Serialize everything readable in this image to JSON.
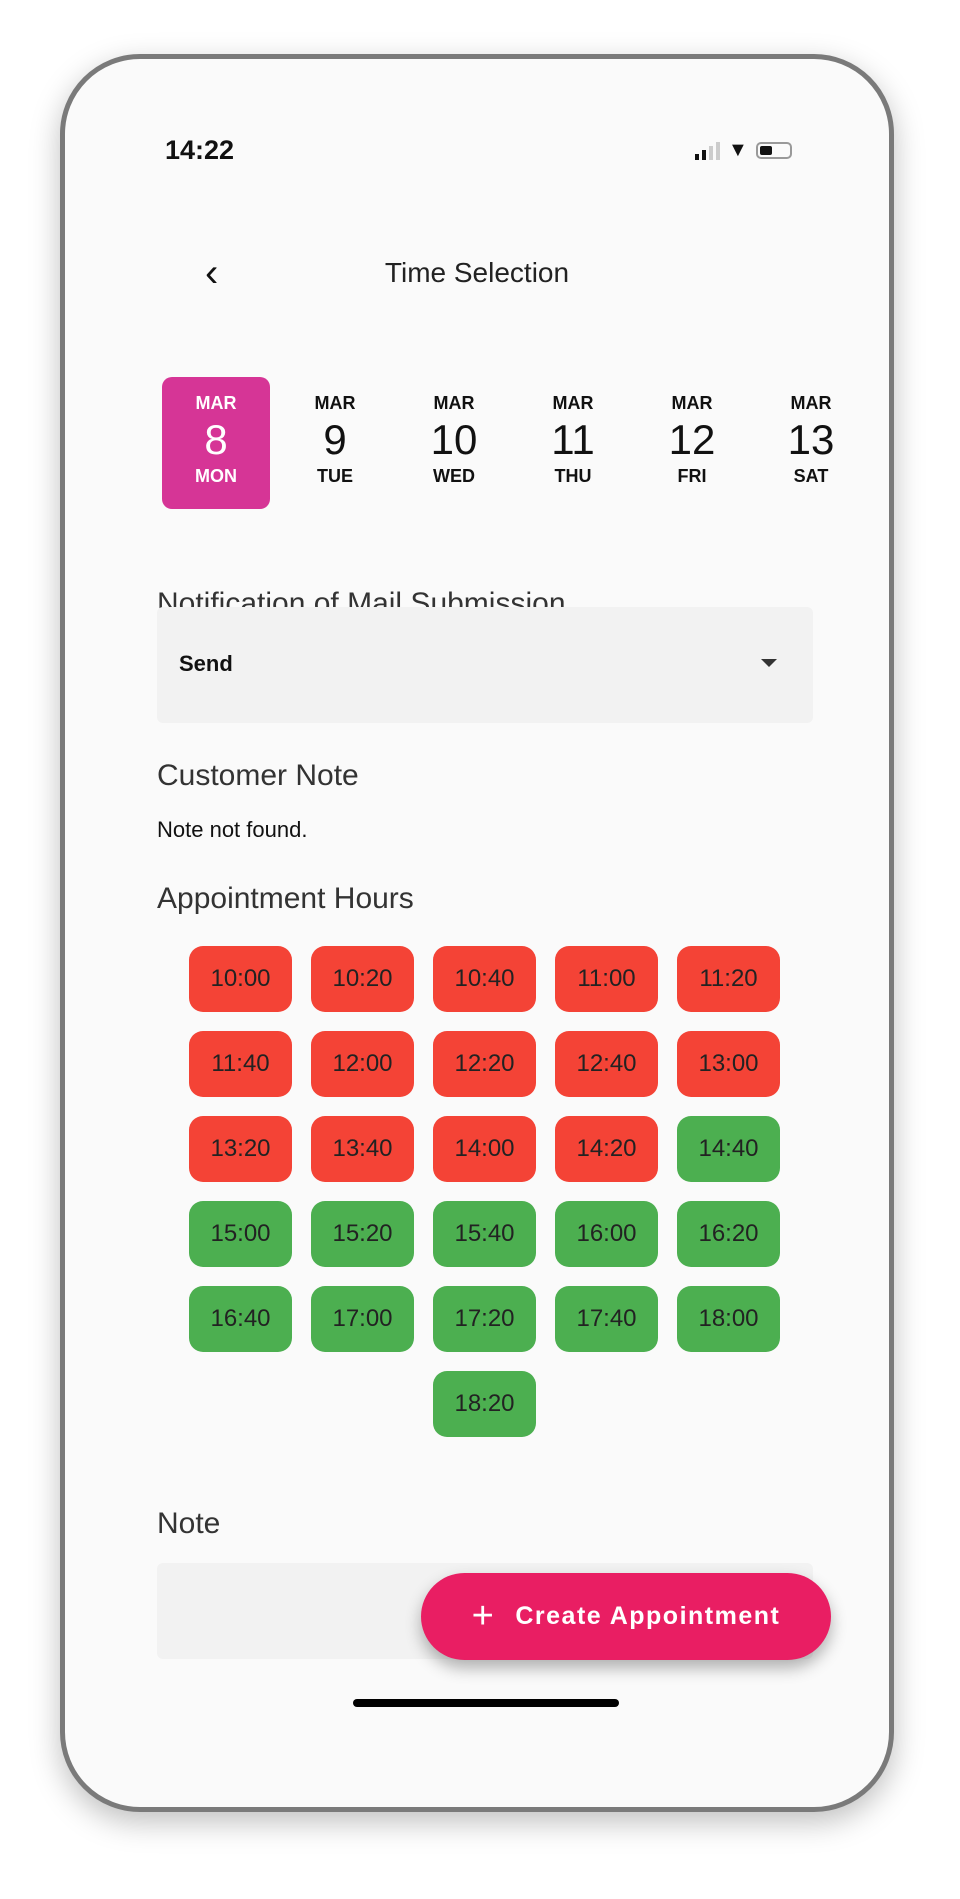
{
  "status": {
    "time": "14:22"
  },
  "header": {
    "title": "Time Selection"
  },
  "dates": [
    {
      "month": "MAR",
      "day": "8",
      "weekday": "MON",
      "selected": true
    },
    {
      "month": "MAR",
      "day": "9",
      "weekday": "TUE",
      "selected": false
    },
    {
      "month": "MAR",
      "day": "10",
      "weekday": "WED",
      "selected": false
    },
    {
      "month": "MAR",
      "day": "11",
      "weekday": "THU",
      "selected": false
    },
    {
      "month": "MAR",
      "day": "12",
      "weekday": "FRI",
      "selected": false
    },
    {
      "month": "MAR",
      "day": "13",
      "weekday": "SAT",
      "selected": false
    }
  ],
  "mail_notification": {
    "label": "Notification of Mail Submission",
    "value": "Send"
  },
  "customer_note": {
    "label": "Customer Note",
    "value": "Note not found."
  },
  "appointment_hours": {
    "label": "Appointment Hours",
    "colors": {
      "booked": "#f44336",
      "available": "#4caf50"
    },
    "slots": [
      {
        "time": "10:00",
        "status": "booked"
      },
      {
        "time": "10:20",
        "status": "booked"
      },
      {
        "time": "10:40",
        "status": "booked"
      },
      {
        "time": "11:00",
        "status": "booked"
      },
      {
        "time": "11:20",
        "status": "booked"
      },
      {
        "time": "11:40",
        "status": "booked"
      },
      {
        "time": "12:00",
        "status": "booked"
      },
      {
        "time": "12:20",
        "status": "booked"
      },
      {
        "time": "12:40",
        "status": "booked"
      },
      {
        "time": "13:00",
        "status": "booked"
      },
      {
        "time": "13:20",
        "status": "booked"
      },
      {
        "time": "13:40",
        "status": "booked"
      },
      {
        "time": "14:00",
        "status": "booked"
      },
      {
        "time": "14:20",
        "status": "booked"
      },
      {
        "time": "14:40",
        "status": "available"
      },
      {
        "time": "15:00",
        "status": "available"
      },
      {
        "time": "15:20",
        "status": "available"
      },
      {
        "time": "15:40",
        "status": "available"
      },
      {
        "time": "16:00",
        "status": "available"
      },
      {
        "time": "16:20",
        "status": "available"
      },
      {
        "time": "16:40",
        "status": "available"
      },
      {
        "time": "17:00",
        "status": "available"
      },
      {
        "time": "17:20",
        "status": "available"
      },
      {
        "time": "17:40",
        "status": "available"
      },
      {
        "time": "18:00",
        "status": "available"
      },
      {
        "time": "18:20",
        "status": "available"
      }
    ]
  },
  "note": {
    "label": "Note",
    "value": ""
  },
  "fab": {
    "icon": "plus-icon",
    "label": "Create Appointment",
    "color": "#e91e63"
  },
  "accent": "#d63596"
}
